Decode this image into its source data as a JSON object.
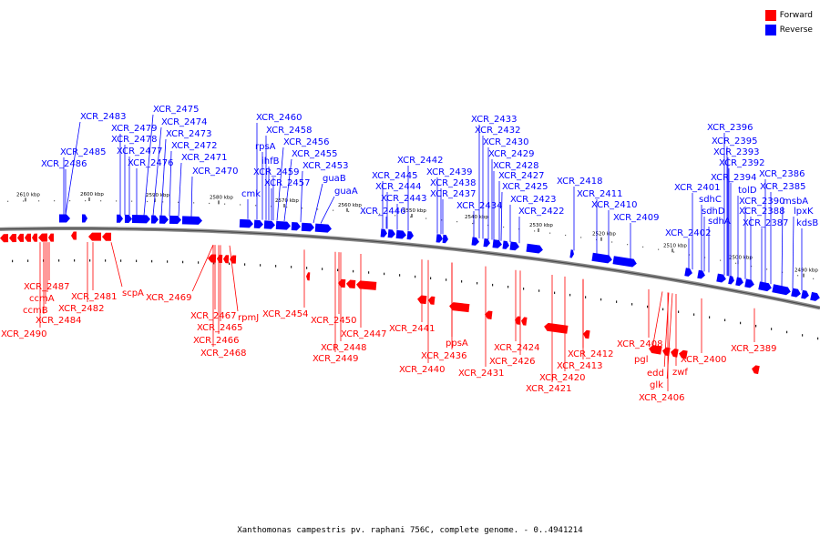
{
  "legend": {
    "forward_label": "Forward",
    "reverse_label": "Reverse",
    "forward_color": "#ff0000",
    "reverse_color": "#0000ff"
  },
  "caption": "Xanthomonas campestris pv. raphani 756C, complete genome. - 0..4941214",
  "colors": {
    "backbone": "#8a8a8a",
    "forward": "#ff0000",
    "reverse": "#0000ff"
  },
  "tick_labels": [
    "2610 kbp",
    "2600 kbp",
    "2590 kbp",
    "2580 kbp",
    "2570 kbp",
    "2560 kbp",
    "2550 kbp",
    "2540 kbp",
    "2530 kbp",
    "2520 kbp",
    "2510 kbp",
    "2500 kbp",
    "2490 kbp"
  ],
  "reverse_genes": [
    "XCR_2483",
    "XCR_2485",
    "XCR_2486",
    "XCR_2479",
    "XCR_2478",
    "XCR_2477",
    "XCR_2476",
    "XCR_2475",
    "XCR_2474",
    "XCR_2473",
    "XCR_2472",
    "XCR_2471",
    "XCR_2470",
    "XCR_2460",
    "XCR_2458",
    "rpsA",
    "XCR_2456",
    "ihfB",
    "XCR_2455",
    "XCR_2459",
    "XCR_2453",
    "cmk",
    "XCR_2457",
    "guaB",
    "guaA",
    "XCR_2442",
    "XCR_2445",
    "XCR_2444",
    "XCR_2443",
    "XCR_2446",
    "XCR_2439",
    "XCR_2438",
    "XCR_2437",
    "XCR_2433",
    "XCR_2432",
    "XCR_2430",
    "XCR_2429",
    "XCR_2428",
    "XCR_2427",
    "XCR_2425",
    "XCR_2434",
    "XCR_2423",
    "XCR_2422",
    "XCR_2418",
    "XCR_2411",
    "XCR_2410",
    "XCR_2409",
    "XCR_2402",
    "XCR_2401",
    "sdhC",
    "sdhD",
    "sdhA",
    "XCR_2396",
    "XCR_2395",
    "XCR_2393",
    "XCR_2392",
    "XCR_2394",
    "tolD",
    "XCR_2390",
    "XCR_2386",
    "XCR_2385",
    "msbA",
    "XCR_2388",
    "XCR_2387",
    "lpxK",
    "kdsB"
  ],
  "forward_genes": [
    "XCR_2487",
    "ccmA",
    "ccmB",
    "XCR_2490",
    "XCR_2484",
    "XCR_2481",
    "XCR_2482",
    "scpA",
    "XCR_2469",
    "XCR_2467",
    "XCR_2465",
    "rpmJ",
    "XCR_2466",
    "XCR_2468",
    "XCR_2454",
    "XCR_2450",
    "XCR_2448",
    "XCR_2447",
    "XCR_2449",
    "XCR_2441",
    "XCR_2440",
    "ppsA",
    "XCR_2436",
    "XCR_2431",
    "XCR_2424",
    "XCR_2426",
    "XCR_2420",
    "XCR_2421",
    "XCR_2412",
    "XCR_2413",
    "XCR_2408",
    "pgl",
    "edd",
    "zwf",
    "glk",
    "XCR_2406",
    "XCR_2400",
    "XCR_2389"
  ]
}
